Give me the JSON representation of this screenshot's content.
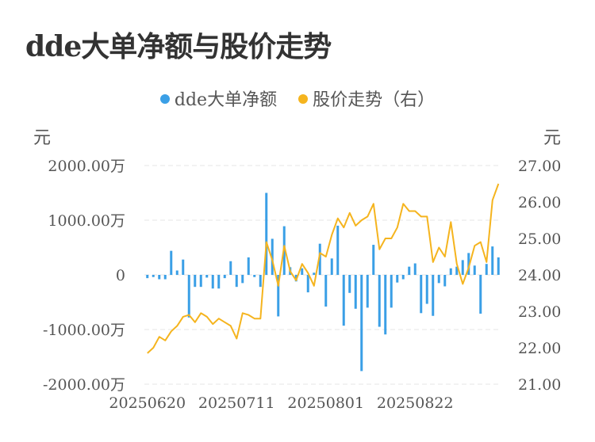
{
  "title": "dde大单净额与股价走势",
  "legend": {
    "bar_label": "dde大单净额",
    "line_label": "股价走势（右）"
  },
  "units": {
    "left": "元",
    "right": "元"
  },
  "colors": {
    "bar": "#3a9fe6",
    "line": "#f5b41e",
    "grid": "#e6e6e6"
  },
  "chart_data": {
    "type": "bar+line",
    "title": "dde大单净额与股价走势",
    "x_tick_labels": [
      "20250620",
      "20250711",
      "20250801",
      "20250822"
    ],
    "x_tick_index": [
      0,
      15,
      30,
      45
    ],
    "left_axis": {
      "min": -2000,
      "max": 2000,
      "ticks": [
        2000,
        1000,
        0,
        -1000,
        -2000
      ],
      "tick_labels": [
        "2000.00万",
        "1000.00万",
        "0",
        "-1000.00万",
        "-2000.00万"
      ],
      "unit": "万元"
    },
    "right_axis": {
      "min": 21,
      "max": 27,
      "ticks": [
        27,
        26,
        25,
        24,
        23,
        22,
        21
      ],
      "tick_labels": [
        "27.00",
        "26.00",
        "25.00",
        "24.00",
        "23.00",
        "22.00",
        "21.00"
      ],
      "unit": "元"
    },
    "grid": true,
    "legend_position": "top-center",
    "series": [
      {
        "name": "dde大单净额",
        "type": "bar",
        "axis": "left",
        "values": [
          -60,
          -40,
          -80,
          -80,
          440,
          80,
          280,
          -780,
          -220,
          -220,
          -50,
          -250,
          -250,
          -60,
          250,
          -220,
          -150,
          320,
          -40,
          -220,
          1500,
          660,
          -760,
          890,
          140,
          -120,
          120,
          -320,
          40,
          570,
          -580,
          300,
          900,
          -930,
          -330,
          -620,
          -1760,
          -600,
          550,
          -950,
          -1090,
          -600,
          -140,
          -80,
          150,
          210,
          -700,
          -530,
          -750,
          -150,
          -210,
          120,
          150,
          270,
          400,
          170,
          -710,
          200,
          520,
          320
        ]
      },
      {
        "name": "股价走势（右）",
        "type": "line",
        "axis": "right",
        "values": [
          21.85,
          22.0,
          22.3,
          22.2,
          22.45,
          22.6,
          22.85,
          22.9,
          22.7,
          22.95,
          22.85,
          22.65,
          22.8,
          22.7,
          22.6,
          22.25,
          22.95,
          22.9,
          22.8,
          22.8,
          24.9,
          24.4,
          23.7,
          24.8,
          24.1,
          23.85,
          24.3,
          24.05,
          23.7,
          24.6,
          24.5,
          25.1,
          25.55,
          25.3,
          25.7,
          25.35,
          25.5,
          25.6,
          25.95,
          24.7,
          25.0,
          25.0,
          25.3,
          25.95,
          25.75,
          25.75,
          25.6,
          25.6,
          24.35,
          24.75,
          24.5,
          25.45,
          24.3,
          23.75,
          24.2,
          24.8,
          24.9,
          24.35,
          26.05,
          26.5
        ]
      }
    ]
  }
}
